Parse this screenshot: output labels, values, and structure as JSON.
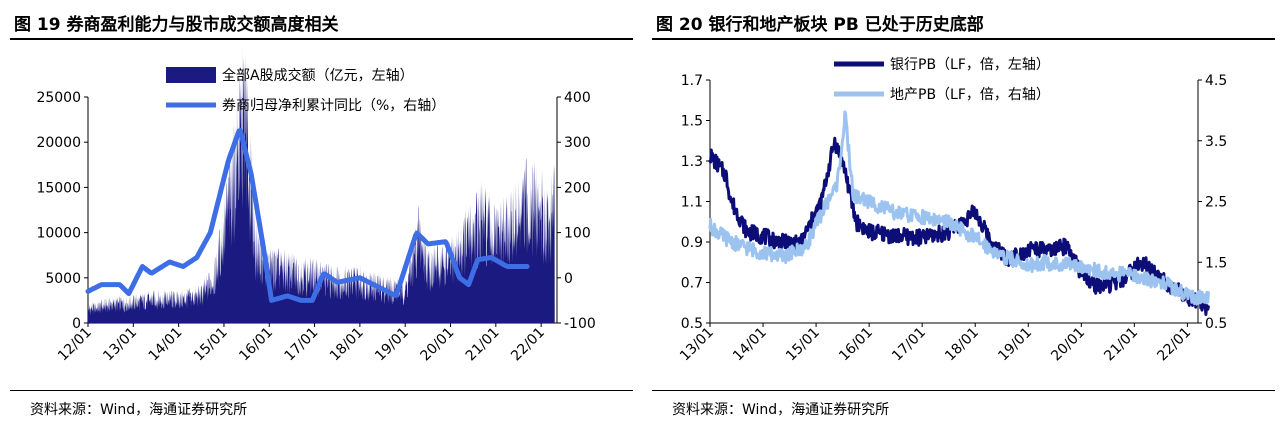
{
  "left_panel": {
    "title": "图 19 券商盈利能力与股市成交额高度相关",
    "source": "资料来源：Wind，海通证券研究所"
  },
  "right_panel": {
    "title": "图 20 银行和地产板块 PB 已处于历史底部",
    "source": "资料来源：Wind，海通证券研究所"
  },
  "colors": {
    "navy": "#1a1a80",
    "blue": "#3d6ee6",
    "dark_navy": "#0d0d78",
    "light_blue": "#9cc3f0"
  },
  "chart_data": [
    {
      "type": "bar+line",
      "title": "图 19 券商盈利能力与股市成交额高度相关",
      "legend_position": "top",
      "x_ticks": [
        "12/01",
        "13/01",
        "14/01",
        "15/01",
        "16/01",
        "17/01",
        "18/01",
        "19/01",
        "20/01",
        "21/01",
        "22/01"
      ],
      "y_left": {
        "min": 0,
        "max": 25000,
        "ticks": [
          0,
          5000,
          10000,
          15000,
          20000,
          25000
        ]
      },
      "y_right": {
        "min": -100,
        "max": 400,
        "ticks": [
          -100,
          0,
          100,
          200,
          300,
          400
        ]
      },
      "series": [
        {
          "name": "全部A股成交额（亿元，左轴）",
          "kind": "bar",
          "axis": "left",
          "points": [
            [
              12.0,
              1500
            ],
            [
              12.5,
              2000
            ],
            [
              13.0,
              2200
            ],
            [
              13.5,
              2600
            ],
            [
              14.0,
              2500
            ],
            [
              14.5,
              3000
            ],
            [
              14.8,
              5000
            ],
            [
              15.0,
              10000
            ],
            [
              15.3,
              18000
            ],
            [
              15.45,
              23000
            ],
            [
              15.55,
              17000
            ],
            [
              15.7,
              8000
            ],
            [
              16.0,
              6000
            ],
            [
              16.5,
              5500
            ],
            [
              17.0,
              5000
            ],
            [
              17.5,
              4500
            ],
            [
              18.0,
              4500
            ],
            [
              18.5,
              3800
            ],
            [
              19.0,
              3500
            ],
            [
              19.2,
              7000
            ],
            [
              19.3,
              9500
            ],
            [
              19.5,
              6000
            ],
            [
              20.0,
              6500
            ],
            [
              20.5,
              10000
            ],
            [
              20.7,
              11000
            ],
            [
              21.0,
              9000
            ],
            [
              21.5,
              11000
            ],
            [
              21.7,
              13000
            ],
            [
              22.0,
              12000
            ],
            [
              22.2,
              11000
            ],
            [
              22.3,
              13000
            ]
          ]
        },
        {
          "name": "券商归母净利累计同比（%，右轴）",
          "kind": "line",
          "axis": "right",
          "points": [
            [
              12.0,
              -30
            ],
            [
              12.3,
              -15
            ],
            [
              12.7,
              -15
            ],
            [
              12.9,
              -35
            ],
            [
              13.2,
              25
            ],
            [
              13.4,
              10
            ],
            [
              13.8,
              35
            ],
            [
              14.1,
              25
            ],
            [
              14.4,
              45
            ],
            [
              14.7,
              100
            ],
            [
              15.1,
              260
            ],
            [
              15.35,
              330
            ],
            [
              15.6,
              230
            ],
            [
              15.85,
              80
            ],
            [
              16.05,
              -50
            ],
            [
              16.4,
              -40
            ],
            [
              16.7,
              -50
            ],
            [
              16.95,
              -50
            ],
            [
              17.2,
              10
            ],
            [
              17.5,
              -10
            ],
            [
              18.0,
              0
            ],
            [
              18.4,
              -20
            ],
            [
              18.8,
              -40
            ],
            [
              19.25,
              100
            ],
            [
              19.5,
              75
            ],
            [
              19.9,
              80
            ],
            [
              20.2,
              0
            ],
            [
              20.4,
              -15
            ],
            [
              20.6,
              40
            ],
            [
              20.9,
              45
            ],
            [
              21.25,
              25
            ],
            [
              21.5,
              25
            ],
            [
              21.7,
              25
            ]
          ]
        }
      ]
    },
    {
      "type": "line",
      "title": "图 20 银行和地产板块 PB 已处于历史底部",
      "legend_position": "top",
      "x_ticks": [
        "13/01",
        "14/01",
        "15/01",
        "16/01",
        "17/01",
        "18/01",
        "19/01",
        "20/01",
        "21/01",
        "22/01"
      ],
      "y_left": {
        "min": 0.5,
        "max": 1.7,
        "ticks": [
          0.5,
          0.7,
          0.9,
          1.1,
          1.3,
          1.5,
          1.7
        ]
      },
      "y_right": {
        "min": 0.5,
        "max": 4.5,
        "ticks": [
          0.5,
          1.5,
          2.5,
          3.5,
          4.5
        ]
      },
      "series": [
        {
          "name": "银行PB（LF，倍，左轴）",
          "kind": "line",
          "axis": "left",
          "points": [
            [
              13.0,
              1.33
            ],
            [
              13.3,
              1.23
            ],
            [
              13.4,
              1.1
            ],
            [
              13.7,
              0.95
            ],
            [
              14.0,
              0.93
            ],
            [
              14.3,
              0.9
            ],
            [
              14.7,
              0.89
            ],
            [
              15.1,
              1.1
            ],
            [
              15.35,
              1.4
            ],
            [
              15.55,
              1.25
            ],
            [
              15.75,
              1.0
            ],
            [
              16.0,
              0.95
            ],
            [
              16.5,
              0.93
            ],
            [
              17.0,
              0.92
            ],
            [
              17.5,
              0.95
            ],
            [
              18.0,
              1.05
            ],
            [
              18.3,
              0.9
            ],
            [
              18.6,
              0.82
            ],
            [
              19.1,
              0.87
            ],
            [
              19.4,
              0.85
            ],
            [
              19.7,
              0.88
            ],
            [
              20.0,
              0.75
            ],
            [
              20.3,
              0.68
            ],
            [
              20.7,
              0.7
            ],
            [
              21.15,
              0.8
            ],
            [
              21.5,
              0.72
            ],
            [
              22.0,
              0.63
            ],
            [
              22.3,
              0.6
            ],
            [
              22.4,
              0.56
            ]
          ]
        },
        {
          "name": "地产PB（LF，倍，右轴）",
          "kind": "line",
          "axis": "right",
          "points": [
            [
              13.0,
              2.1
            ],
            [
              13.2,
              1.95
            ],
            [
              13.5,
              1.8
            ],
            [
              14.0,
              1.65
            ],
            [
              14.4,
              1.6
            ],
            [
              14.8,
              1.75
            ],
            [
              15.1,
              2.3
            ],
            [
              15.4,
              2.8
            ],
            [
              15.55,
              3.9
            ],
            [
              15.7,
              2.6
            ],
            [
              16.0,
              2.5
            ],
            [
              16.5,
              2.3
            ],
            [
              17.0,
              2.25
            ],
            [
              17.5,
              2.15
            ],
            [
              18.0,
              1.9
            ],
            [
              18.5,
              1.6
            ],
            [
              19.0,
              1.45
            ],
            [
              19.3,
              1.5
            ],
            [
              19.6,
              1.45
            ],
            [
              20.0,
              1.45
            ],
            [
              20.5,
              1.3
            ],
            [
              21.0,
              1.3
            ],
            [
              21.3,
              1.2
            ],
            [
              21.6,
              1.15
            ],
            [
              22.0,
              0.95
            ],
            [
              22.3,
              0.9
            ],
            [
              22.4,
              0.88
            ]
          ]
        }
      ]
    }
  ]
}
